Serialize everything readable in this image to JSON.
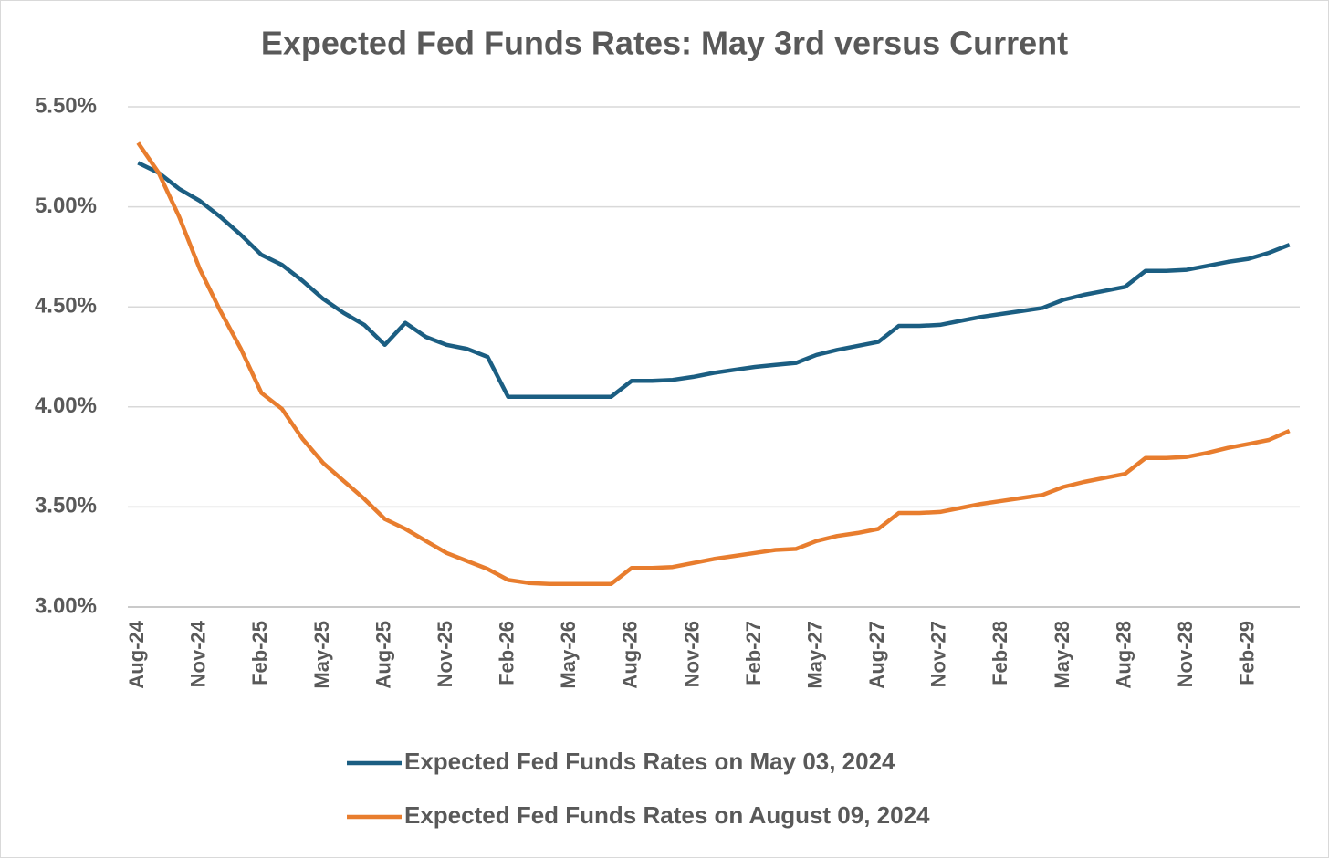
{
  "chart_data": {
    "type": "line",
    "title": "Expected Fed Funds Rates: May 3rd versus Current",
    "categories": [
      "Aug-24",
      null,
      null,
      "Nov-24",
      null,
      null,
      "Feb-25",
      null,
      null,
      "May-25",
      null,
      null,
      "Aug-25",
      null,
      null,
      "Nov-25",
      null,
      null,
      "Feb-26",
      null,
      null,
      "May-26",
      null,
      null,
      "Aug-26",
      null,
      null,
      "Nov-26",
      null,
      null,
      "Feb-27",
      null,
      null,
      "May-27",
      null,
      null,
      "Aug-27",
      null,
      null,
      "Nov-27",
      null,
      null,
      "Feb-28",
      null,
      null,
      "May-28",
      null,
      null,
      "Aug-28",
      null,
      null,
      "Nov-28",
      null,
      null,
      "Feb-29",
      null,
      null
    ],
    "series": [
      {
        "name": "Expected Fed Funds Rates on May 03, 2024",
        "color": "#1b5e82",
        "values": [
          5.22,
          5.17,
          5.09,
          5.03,
          4.95,
          4.86,
          4.76,
          4.71,
          4.63,
          4.54,
          4.47,
          4.41,
          4.31,
          4.42,
          4.35,
          4.31,
          4.29,
          4.25,
          4.05,
          4.05,
          4.05,
          4.05,
          4.05,
          4.05,
          4.13,
          4.13,
          4.135,
          4.15,
          4.17,
          4.185,
          4.2,
          4.21,
          4.22,
          4.26,
          4.285,
          4.305,
          4.325,
          4.405,
          4.405,
          4.41,
          4.43,
          4.45,
          4.465,
          4.48,
          4.495,
          4.535,
          4.56,
          4.58,
          4.6,
          4.68,
          4.68,
          4.685,
          4.705,
          4.725,
          4.74,
          4.77,
          4.81
        ]
      },
      {
        "name": "Expected Fed Funds Rates on August 09, 2024",
        "color": "#e87d2e",
        "values": [
          5.32,
          5.17,
          4.95,
          4.69,
          4.48,
          4.29,
          4.07,
          3.99,
          3.84,
          3.72,
          3.63,
          3.54,
          3.44,
          3.39,
          3.33,
          3.27,
          3.23,
          3.19,
          3.135,
          3.12,
          3.115,
          3.115,
          3.115,
          3.115,
          3.195,
          3.195,
          3.2,
          3.22,
          3.24,
          3.255,
          3.27,
          3.285,
          3.29,
          3.33,
          3.355,
          3.37,
          3.39,
          3.47,
          3.47,
          3.475,
          3.495,
          3.515,
          3.53,
          3.545,
          3.56,
          3.6,
          3.625,
          3.645,
          3.665,
          3.745,
          3.745,
          3.75,
          3.77,
          3.795,
          3.815,
          3.835,
          3.88
        ]
      }
    ],
    "ylim": [
      3,
      5.5
    ],
    "yticks": [
      {
        "value": 3,
        "label": "3.00%"
      },
      {
        "value": 3.5,
        "label": "3.50%"
      },
      {
        "value": 4,
        "label": "4.00%"
      },
      {
        "value": 4.5,
        "label": "4.50%"
      },
      {
        "value": 5,
        "label": "5.00%"
      },
      {
        "value": 5.5,
        "label": "5.50%"
      }
    ],
    "grid": true,
    "legend": "bottom"
  }
}
